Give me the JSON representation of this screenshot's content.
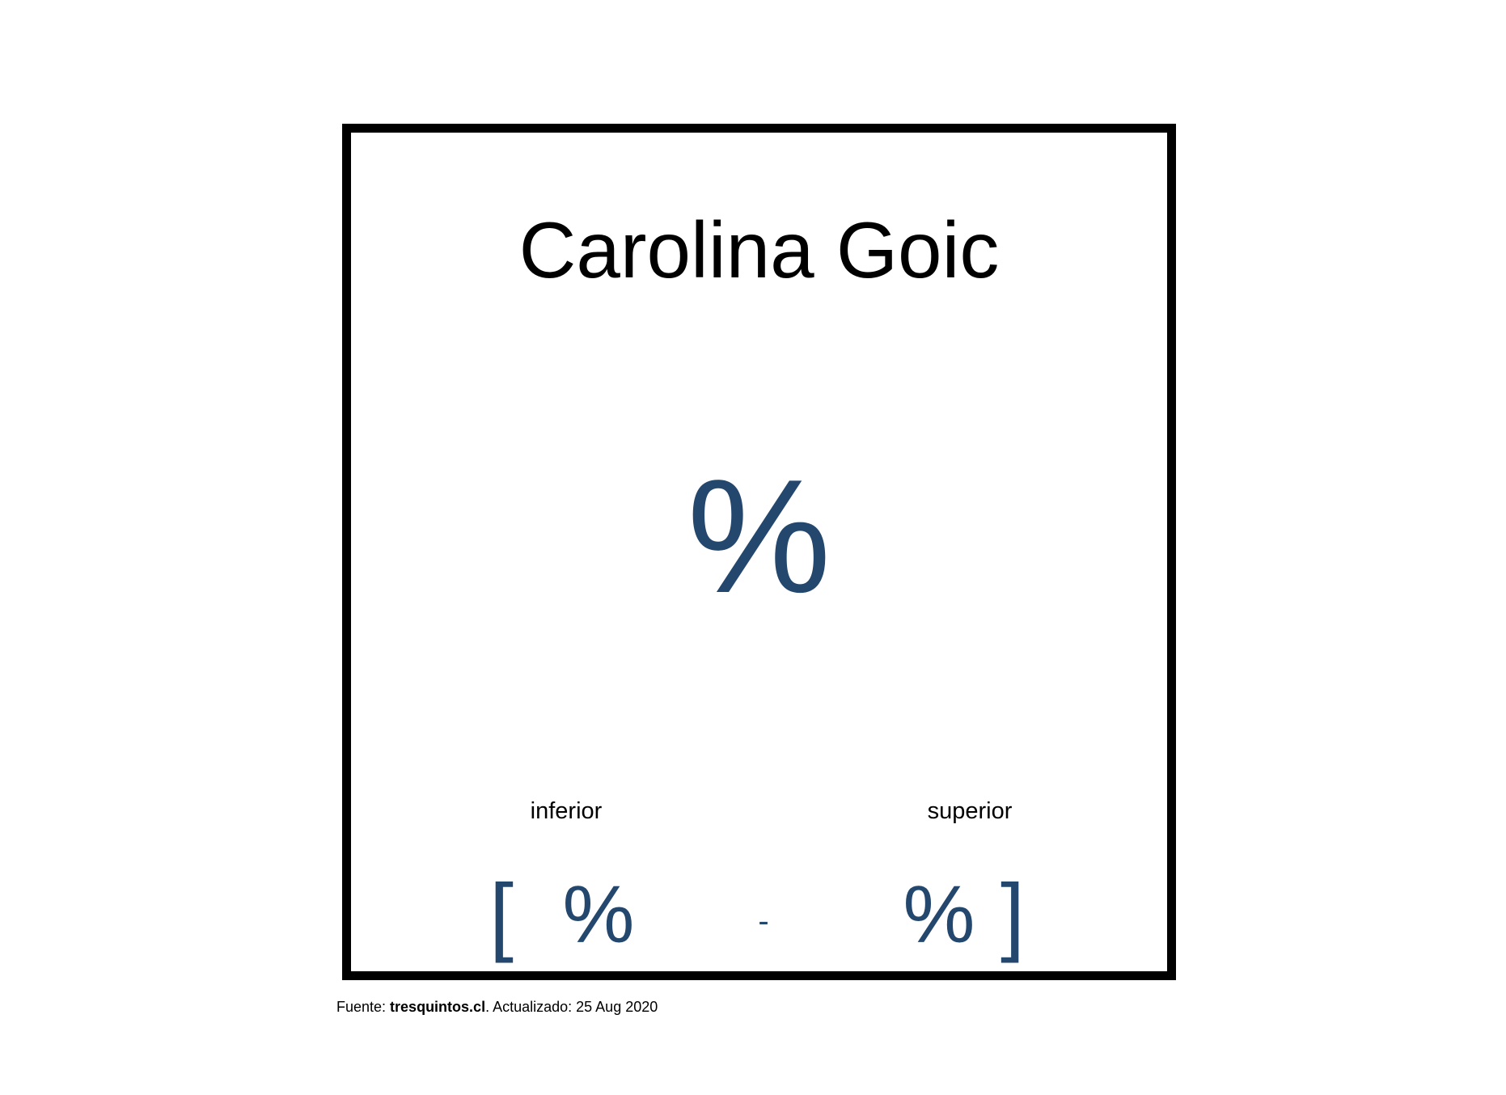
{
  "card": {
    "title": "Carolina Goic",
    "main_value": "%",
    "lower_label": "inferior",
    "upper_label": "superior",
    "open_bracket": "[",
    "lower_value": "%",
    "separator": "-",
    "upper_value": "%",
    "close_bracket": "]"
  },
  "footer": {
    "source_prefix": "Fuente: ",
    "source_name": "tresquintos.cl",
    "updated_text": ". Actualizado: 25 Aug 2020"
  },
  "colors": {
    "accent": "#24476e",
    "text": "#000000",
    "border": "#000000",
    "background": "#ffffff"
  }
}
